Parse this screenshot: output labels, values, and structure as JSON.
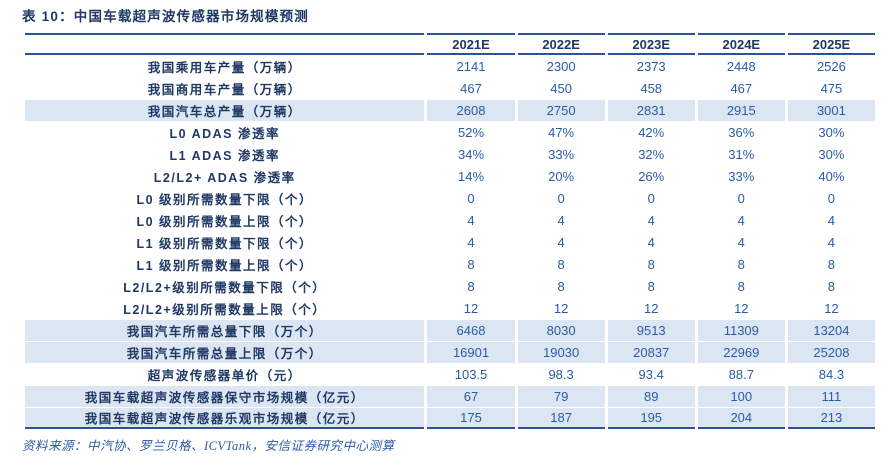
{
  "title": "表 10：中国车载超声波传感器市场规模预测",
  "source_note": "资料来源：中汽协、罗兰贝格、ICVTank，安信证券研究中心测算",
  "colors": {
    "title_navy": "#1f3864",
    "value_blue": "#2a5ba7",
    "rule_blue": "#2e5393",
    "highlight_bg": "#dce6f2"
  },
  "chart_data": {
    "type": "table",
    "title": "中国车载超声波传感器市场规模预测",
    "columns": [
      "2021E",
      "2022E",
      "2023E",
      "2024E",
      "2025E"
    ],
    "rows": [
      {
        "label": "我国乘用车产量（万辆）",
        "values": [
          "2141",
          "2300",
          "2373",
          "2448",
          "2526"
        ],
        "highlight": false
      },
      {
        "label": "我国商用车产量（万辆）",
        "values": [
          "467",
          "450",
          "458",
          "467",
          "475"
        ],
        "highlight": false
      },
      {
        "label": "我国汽车总产量（万辆）",
        "values": [
          "2608",
          "2750",
          "2831",
          "2915",
          "3001"
        ],
        "highlight": true
      },
      {
        "label": "L0 ADAS 渗透率",
        "values": [
          "52%",
          "47%",
          "42%",
          "36%",
          "30%"
        ],
        "highlight": false
      },
      {
        "label": "L1 ADAS 渗透率",
        "values": [
          "34%",
          "33%",
          "32%",
          "31%",
          "30%"
        ],
        "highlight": false
      },
      {
        "label": "L2/L2+ ADAS 渗透率",
        "values": [
          "14%",
          "20%",
          "26%",
          "33%",
          "40%"
        ],
        "highlight": false
      },
      {
        "label": "L0 级别所需数量下限（个）",
        "values": [
          "0",
          "0",
          "0",
          "0",
          "0"
        ],
        "highlight": false
      },
      {
        "label": "L0 级别所需数量上限（个）",
        "values": [
          "4",
          "4",
          "4",
          "4",
          "4"
        ],
        "highlight": false
      },
      {
        "label": "L1 级别所需数量下限（个）",
        "values": [
          "4",
          "4",
          "4",
          "4",
          "4"
        ],
        "highlight": false
      },
      {
        "label": "L1 级别所需数量上限（个）",
        "values": [
          "8",
          "8",
          "8",
          "8",
          "8"
        ],
        "highlight": false
      },
      {
        "label": "L2/L2+级别所需数量下限（个）",
        "values": [
          "8",
          "8",
          "8",
          "8",
          "8"
        ],
        "highlight": false
      },
      {
        "label": "L2/L2+级别所需数量上限（个）",
        "values": [
          "12",
          "12",
          "12",
          "12",
          "12"
        ],
        "highlight": false
      },
      {
        "label": "我国汽车所需总量下限（万个）",
        "values": [
          "6468",
          "8030",
          "9513",
          "11309",
          "13204"
        ],
        "highlight": true
      },
      {
        "label": "我国汽车所需总量上限（万个）",
        "values": [
          "16901",
          "19030",
          "20837",
          "22969",
          "25208"
        ],
        "highlight": true
      },
      {
        "label": "超声波传感器单价（元）",
        "values": [
          "103.5",
          "98.3",
          "93.4",
          "88.7",
          "84.3"
        ],
        "highlight": false
      },
      {
        "label": "我国车载超声波传感器保守市场规模（亿元）",
        "values": [
          "67",
          "79",
          "89",
          "100",
          "111"
        ],
        "highlight": true
      },
      {
        "label": "我国车载超声波传感器乐观市场规模（亿元）",
        "values": [
          "175",
          "187",
          "195",
          "204",
          "213"
        ],
        "highlight": true
      }
    ]
  }
}
